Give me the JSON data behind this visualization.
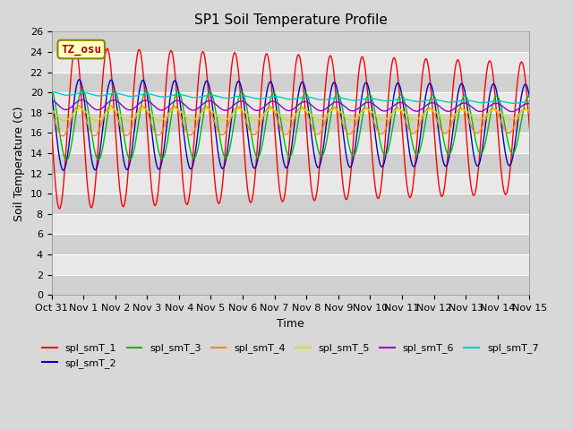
{
  "title": "SP1 Soil Temperature Profile",
  "xlabel": "Time",
  "ylabel": "Soil Temperature (C)",
  "ylim": [
    0,
    26
  ],
  "yticks": [
    0,
    2,
    4,
    6,
    8,
    10,
    12,
    14,
    16,
    18,
    20,
    22,
    24,
    26
  ],
  "xtick_labels": [
    "Oct 31",
    "Nov 1",
    "Nov 2",
    "Nov 3",
    "Nov 4",
    "Nov 5",
    "Nov 6",
    "Nov 7",
    "Nov 8",
    "Nov 9",
    "Nov 10",
    "Nov 11",
    "Nov 12",
    "Nov 13",
    "Nov 14",
    "Nov 15"
  ],
  "annotation_text": "TZ_osu",
  "annotation_color": "#aa0000",
  "annotation_bg": "#ffffc0",
  "annotation_border": "#888800",
  "bg_color": "#d8d8d8",
  "band_light": "#e8e8e8",
  "band_dark": "#d0d0d0",
  "title_fontsize": 11,
  "label_fontsize": 9,
  "tick_fontsize": 8,
  "configs": {
    "spl_smT_1": {
      "amp_s": 8.0,
      "amp_e": 6.5,
      "mean_s": 16.5,
      "mean_e": 16.5,
      "lag": 0.0,
      "color": "#ff0000"
    },
    "spl_smT_2": {
      "amp_s": 4.5,
      "amp_e": 4.0,
      "mean_s": 16.8,
      "mean_e": 16.8,
      "lag": 0.12,
      "color": "#0000cc"
    },
    "spl_smT_3": {
      "amp_s": 3.5,
      "amp_e": 2.8,
      "mean_s": 16.8,
      "mean_e": 16.8,
      "lag": 0.22,
      "color": "#00bb00"
    },
    "spl_smT_4": {
      "amp_s": 1.5,
      "amp_e": 1.2,
      "mean_s": 17.2,
      "mean_e": 17.2,
      "lag": 0.1,
      "color": "#ff8800"
    },
    "spl_smT_5": {
      "amp_s": 0.6,
      "amp_e": 0.5,
      "mean_s": 17.8,
      "mean_e": 17.8,
      "lag": 0.15,
      "color": "#dddd00"
    },
    "spl_smT_6": {
      "amp_s": 0.5,
      "amp_e": 0.4,
      "mean_s": 18.8,
      "mean_e": 18.5,
      "lag": 0.2,
      "color": "#9900cc"
    },
    "spl_smT_7": {
      "amp_s": 0.15,
      "amp_e": 0.1,
      "mean_s": 19.9,
      "mean_e": 19.0,
      "lag": 0.25,
      "color": "#00cccc"
    }
  },
  "series_order": [
    "spl_smT_1",
    "spl_smT_2",
    "spl_smT_3",
    "spl_smT_4",
    "spl_smT_5",
    "spl_smT_6",
    "spl_smT_7"
  ]
}
